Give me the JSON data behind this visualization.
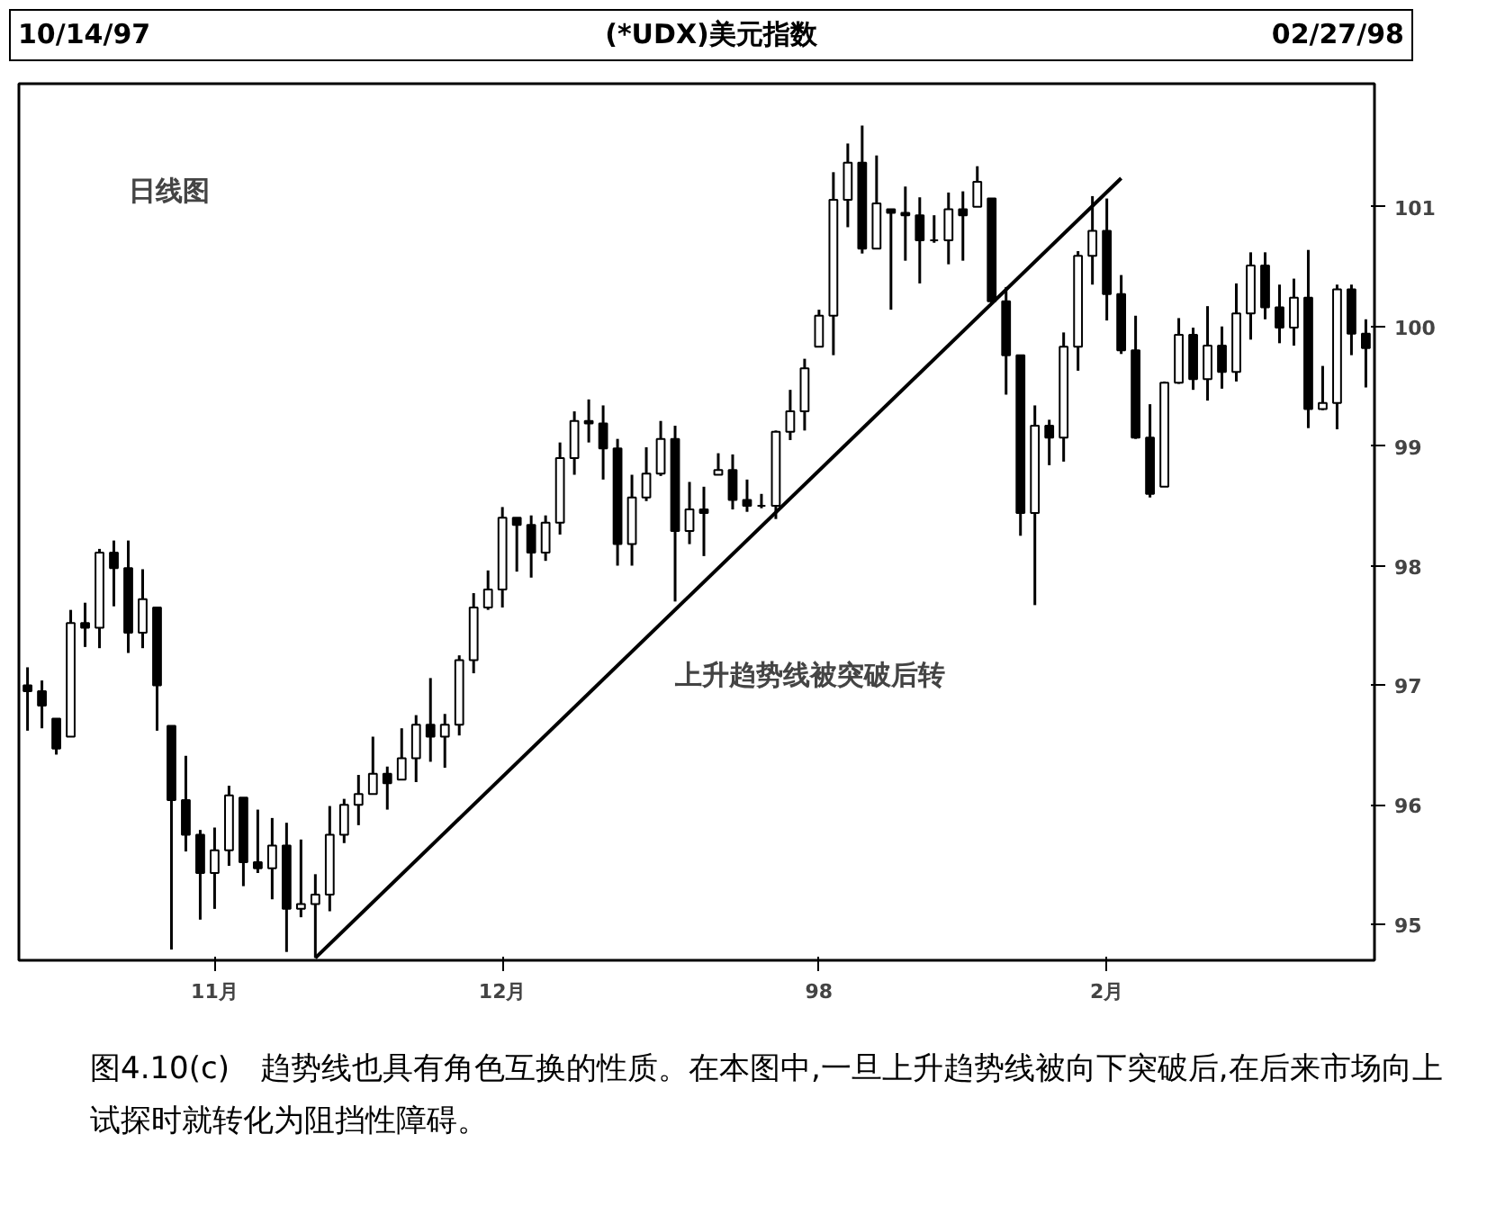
{
  "chart_data": {
    "type": "candlestick",
    "title": "(*UDX)美元指数",
    "annotations": [
      "10/14/97",
      "02/27/98",
      "日线图",
      "上升趋势线被突破后转",
      "图4.10(c)　趋势线也具有角色互换的性质。在本图中,一旦上升趋势线被向下突破后,在后来市场向上试探时就转化为阻挡性障碍。"
    ],
    "categories": [
      null,
      null,
      null,
      null,
      null,
      null,
      null,
      null,
      null,
      null,
      null,
      null,
      null,
      "11月",
      null,
      null,
      null,
      null,
      null,
      null,
      null,
      null,
      null,
      null,
      null,
      null,
      null,
      null,
      null,
      null,
      null,
      null,
      null,
      "12月",
      null,
      null,
      null,
      null,
      null,
      null,
      null,
      null,
      null,
      null,
      null,
      null,
      null,
      null,
      null,
      null,
      null,
      null,
      null,
      null,
      null,
      "98",
      null,
      null,
      null,
      null,
      null,
      null,
      null,
      null,
      null,
      null,
      null,
      null,
      null,
      null,
      null,
      null,
      null,
      null,
      null,
      "2月",
      null,
      null,
      null,
      null,
      null,
      null,
      null,
      null,
      null,
      null,
      null,
      null,
      null,
      null,
      null,
      null,
      null,
      null
    ],
    "color": "#000000",
    "ohlc": [
      [
        97.0,
        97.15,
        96.62,
        96.95
      ],
      [
        96.95,
        97.04,
        96.64,
        96.83
      ],
      [
        96.72,
        96.72,
        96.42,
        96.47
      ],
      [
        96.57,
        97.63,
        96.57,
        97.52
      ],
      [
        97.52,
        97.69,
        97.32,
        97.48
      ],
      [
        97.48,
        98.14,
        97.31,
        98.11
      ],
      [
        98.11,
        98.21,
        97.66,
        97.98
      ],
      [
        97.98,
        98.21,
        97.27,
        97.44
      ],
      [
        97.44,
        97.97,
        97.31,
        97.72
      ],
      [
        97.65,
        97.65,
        96.62,
        97.0
      ],
      [
        96.66,
        96.66,
        94.79,
        96.04
      ],
      [
        96.04,
        96.41,
        95.61,
        95.75
      ],
      [
        95.75,
        95.79,
        95.04,
        95.43
      ],
      [
        95.43,
        95.81,
        95.13,
        95.62
      ],
      [
        95.62,
        96.16,
        95.49,
        96.08
      ],
      [
        96.06,
        96.06,
        95.32,
        95.52
      ],
      [
        95.52,
        95.96,
        95.43,
        95.47
      ],
      [
        95.47,
        95.89,
        95.21,
        95.66
      ],
      [
        95.66,
        95.85,
        94.77,
        95.13
      ],
      [
        95.13,
        95.71,
        95.06,
        95.17
      ],
      [
        95.17,
        95.42,
        94.72,
        95.25
      ],
      [
        95.25,
        95.99,
        95.11,
        95.75
      ],
      [
        95.75,
        96.05,
        95.68,
        96.0
      ],
      [
        96.0,
        96.25,
        95.83,
        96.09
      ],
      [
        96.09,
        96.57,
        96.09,
        96.26
      ],
      [
        96.26,
        96.32,
        95.96,
        96.18
      ],
      [
        96.21,
        96.64,
        96.21,
        96.39
      ],
      [
        96.39,
        96.75,
        96.19,
        96.67
      ],
      [
        96.67,
        97.06,
        96.36,
        96.57
      ],
      [
        96.57,
        96.76,
        96.31,
        96.67
      ],
      [
        96.67,
        97.25,
        96.58,
        97.21
      ],
      [
        97.21,
        97.77,
        97.1,
        97.65
      ],
      [
        97.65,
        97.96,
        97.63,
        97.8
      ],
      [
        97.8,
        98.49,
        97.65,
        98.4
      ],
      [
        98.4,
        98.4,
        97.95,
        98.34
      ],
      [
        98.34,
        98.42,
        97.9,
        98.11
      ],
      [
        98.11,
        98.42,
        98.04,
        98.36
      ],
      [
        98.36,
        99.03,
        98.26,
        98.9
      ],
      [
        98.9,
        99.29,
        98.76,
        99.21
      ],
      [
        99.21,
        99.39,
        99.03,
        99.19
      ],
      [
        99.19,
        99.34,
        98.72,
        98.98
      ],
      [
        98.98,
        99.06,
        98.0,
        98.18
      ],
      [
        98.18,
        98.76,
        98.0,
        98.57
      ],
      [
        98.57,
        98.99,
        98.54,
        98.77
      ],
      [
        98.77,
        99.21,
        98.75,
        99.06
      ],
      [
        99.06,
        99.17,
        97.7,
        98.29
      ],
      [
        98.29,
        98.7,
        98.18,
        98.47
      ],
      [
        98.47,
        98.66,
        98.08,
        98.44
      ],
      [
        98.76,
        98.94,
        98.76,
        98.8
      ],
      [
        98.8,
        98.93,
        98.47,
        98.55
      ],
      [
        98.55,
        98.72,
        98.45,
        98.5
      ],
      [
        98.5,
        98.6,
        98.48,
        98.5
      ],
      [
        98.5,
        99.13,
        98.39,
        99.12
      ],
      [
        99.12,
        99.47,
        99.05,
        99.29
      ],
      [
        99.29,
        99.73,
        99.13,
        99.65
      ],
      [
        99.83,
        100.14,
        99.83,
        100.09
      ],
      [
        100.09,
        101.29,
        99.76,
        101.06
      ],
      [
        101.06,
        101.53,
        100.83,
        101.37
      ],
      [
        101.37,
        101.68,
        100.61,
        100.65
      ],
      [
        100.65,
        101.43,
        100.65,
        101.03
      ],
      [
        100.98,
        100.98,
        100.14,
        100.95
      ],
      [
        100.95,
        101.17,
        100.55,
        100.93
      ],
      [
        100.93,
        101.08,
        100.36,
        100.72
      ],
      [
        100.72,
        100.93,
        100.7,
        100.72
      ],
      [
        100.72,
        101.12,
        100.52,
        100.98
      ],
      [
        100.98,
        101.13,
        100.55,
        100.93
      ],
      [
        101.0,
        101.34,
        101.0,
        101.21
      ],
      [
        101.07,
        101.07,
        100.19,
        100.21
      ],
      [
        100.21,
        100.33,
        99.43,
        99.76
      ],
      [
        99.76,
        99.76,
        98.25,
        98.44
      ],
      [
        98.44,
        99.34,
        97.67,
        99.17
      ],
      [
        99.17,
        99.22,
        98.84,
        99.07
      ],
      [
        99.07,
        99.95,
        98.87,
        99.83
      ],
      [
        99.83,
        100.63,
        99.63,
        100.59
      ],
      [
        100.59,
        101.09,
        100.35,
        100.8
      ],
      [
        100.8,
        101.07,
        100.05,
        100.27
      ],
      [
        100.27,
        100.43,
        99.77,
        99.8
      ],
      [
        99.8,
        100.09,
        99.06,
        99.07
      ],
      [
        99.07,
        99.35,
        98.57,
        98.6
      ],
      [
        98.66,
        99.54,
        98.66,
        99.53
      ],
      [
        99.53,
        100.07,
        99.52,
        99.93
      ],
      [
        99.93,
        99.99,
        99.47,
        99.56
      ],
      [
        99.56,
        100.17,
        99.38,
        99.84
      ],
      [
        99.84,
        100.0,
        99.48,
        99.62
      ],
      [
        99.62,
        100.36,
        99.54,
        100.11
      ],
      [
        100.11,
        100.62,
        99.89,
        100.51
      ],
      [
        100.51,
        100.62,
        100.06,
        100.16
      ],
      [
        100.16,
        100.35,
        99.86,
        99.99
      ],
      [
        99.99,
        100.4,
        99.84,
        100.24
      ],
      [
        100.24,
        100.64,
        99.15,
        99.31
      ],
      [
        99.31,
        99.67,
        99.3,
        99.36
      ],
      [
        99.36,
        100.35,
        99.14,
        100.31
      ],
      [
        100.31,
        100.35,
        99.76,
        99.94
      ],
      [
        99.94,
        100.06,
        99.49,
        99.82
      ]
    ],
    "series": [
      {
        "type": "line",
        "values": [
          null,
          null,
          null,
          null,
          null,
          null,
          null,
          null,
          null,
          null,
          null,
          null,
          null,
          null,
          null,
          null,
          null,
          null,
          null,
          null,
          94.72,
          null,
          null,
          null,
          null,
          null,
          null,
          null,
          null,
          null,
          null,
          null,
          null,
          null,
          null,
          null,
          null,
          null,
          null,
          null,
          null,
          null,
          null,
          null,
          null,
          null,
          null,
          null,
          null,
          null,
          null,
          null,
          null,
          null,
          null,
          null,
          null,
          null,
          null,
          null,
          null,
          null,
          null,
          null,
          null,
          null,
          null,
          null,
          null,
          null,
          null,
          null,
          null,
          null,
          null,
          null,
          101.24,
          null,
          null,
          null,
          null,
          null,
          null,
          null,
          null,
          null,
          null,
          null,
          null,
          null,
          null,
          null,
          null,
          null
        ],
        "color": "#000000"
      }
    ],
    "ylim": [
      94.7,
      102.03
    ],
    "yticks": [
      95,
      96,
      97,
      98,
      99,
      100,
      101
    ]
  }
}
